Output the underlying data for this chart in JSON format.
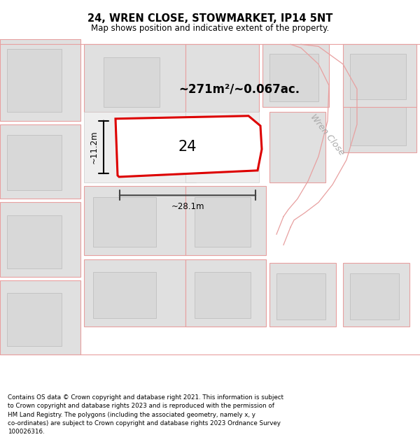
{
  "title_line1": "24, WREN CLOSE, STOWMARKET, IP14 5NT",
  "title_line2": "Map shows position and indicative extent of the property.",
  "footer_text": "Contains OS data © Crown copyright and database right 2021. This information is subject\nto Crown copyright and database rights 2023 and is reproduced with the permission of\nHM Land Registry. The polygons (including the associated geometry, namely x, y\nco-ordinates) are subject to Crown copyright and database rights 2023 Ordnance Survey\n100026316.",
  "bg_color": "#ffffff",
  "map_bg_color": "#f7f7f7",
  "red_line_color": "#dd0000",
  "pink_line_color": "#e8a0a0",
  "road_label": "Wren Close",
  "property_label": "24",
  "area_label": "~271m²/~0.067ac.",
  "width_label": "~28.1m",
  "height_label": "~11.2m"
}
